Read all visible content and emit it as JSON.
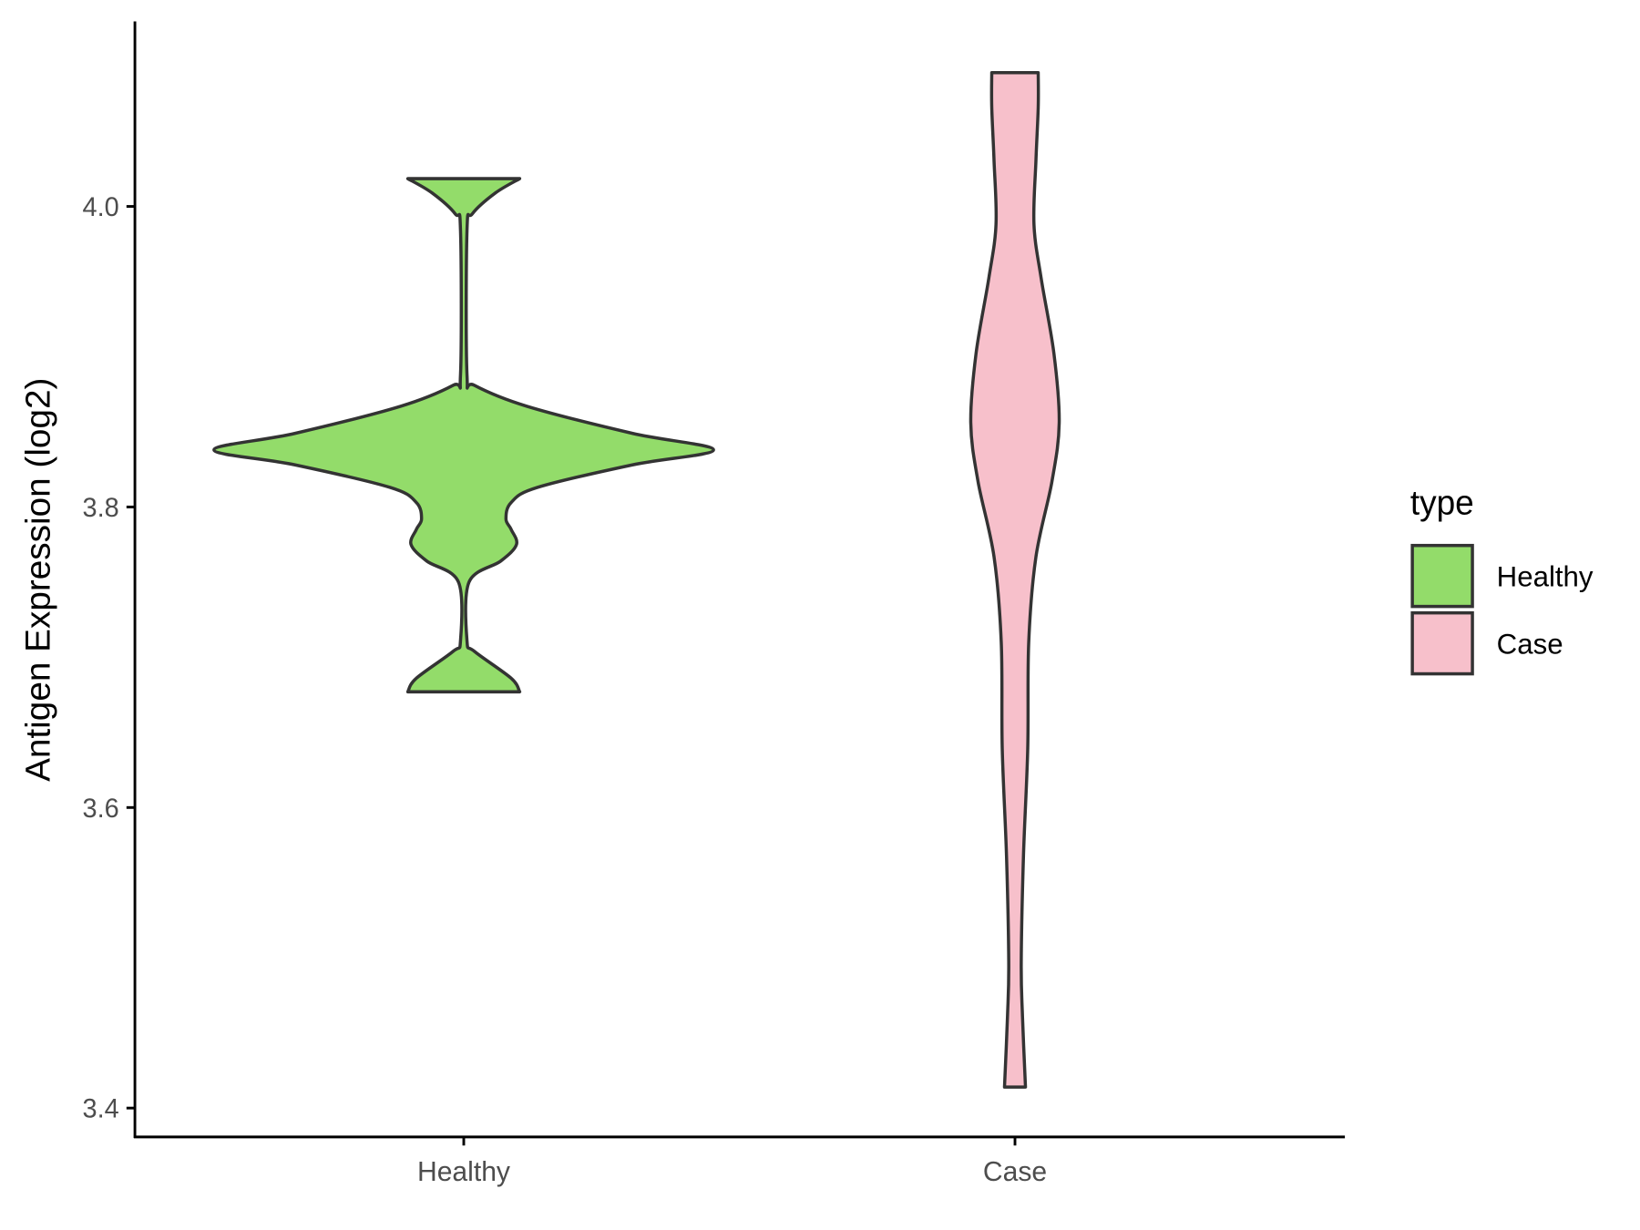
{
  "chart_data": {
    "type": "violin",
    "title": "",
    "xlabel": "",
    "ylabel": "Antigen Expression (log2)",
    "ylim": [
      3.38,
      4.115
    ],
    "yticks": [
      3.4,
      3.6,
      3.8,
      4.0
    ],
    "ytick_labels": [
      "3.4",
      "3.6",
      "3.8",
      "4.0"
    ],
    "categories": [
      "Healthy",
      "Case"
    ],
    "grid": false,
    "legend": {
      "title": "type",
      "placement": "right",
      "entries": [
        "Healthy",
        "Case"
      ]
    },
    "series": [
      {
        "name": "Healthy",
        "color": "#93DC6A",
        "profile_note": "pairs of [expression value, relative density]",
        "profile": [
          [
            4.0185,
            0.224
          ],
          [
            4.009,
            0.127
          ],
          [
            3.995,
            0.034
          ],
          [
            3.984,
            0.013
          ],
          [
            3.888,
            0.013
          ],
          [
            3.881,
            0.042
          ],
          [
            3.867,
            0.253
          ],
          [
            3.849,
            0.675
          ],
          [
            3.838,
            1.0
          ],
          [
            3.828,
            0.675
          ],
          [
            3.813,
            0.295
          ],
          [
            3.803,
            0.19
          ],
          [
            3.792,
            0.169
          ],
          [
            3.785,
            0.19
          ],
          [
            3.775,
            0.211
          ],
          [
            3.764,
            0.148
          ],
          [
            3.75,
            0.021
          ],
          [
            3.711,
            0.013
          ],
          [
            3.704,
            0.042
          ],
          [
            3.686,
            0.19
          ],
          [
            3.677,
            0.224
          ]
        ]
      },
      {
        "name": "Case",
        "color": "#F7C0CB",
        "profile_note": "pairs of [expression value, relative density]",
        "profile": [
          [
            4.089,
            0.093
          ],
          [
            4.066,
            0.093
          ],
          [
            4.031,
            0.084
          ],
          [
            3.988,
            0.076
          ],
          [
            3.952,
            0.105
          ],
          [
            3.902,
            0.156
          ],
          [
            3.856,
            0.177
          ],
          [
            3.817,
            0.148
          ],
          [
            3.767,
            0.084
          ],
          [
            3.71,
            0.055
          ],
          [
            3.639,
            0.051
          ],
          [
            3.568,
            0.034
          ],
          [
            3.497,
            0.025
          ],
          [
            3.461,
            0.03
          ],
          [
            3.414,
            0.042
          ]
        ]
      }
    ]
  }
}
